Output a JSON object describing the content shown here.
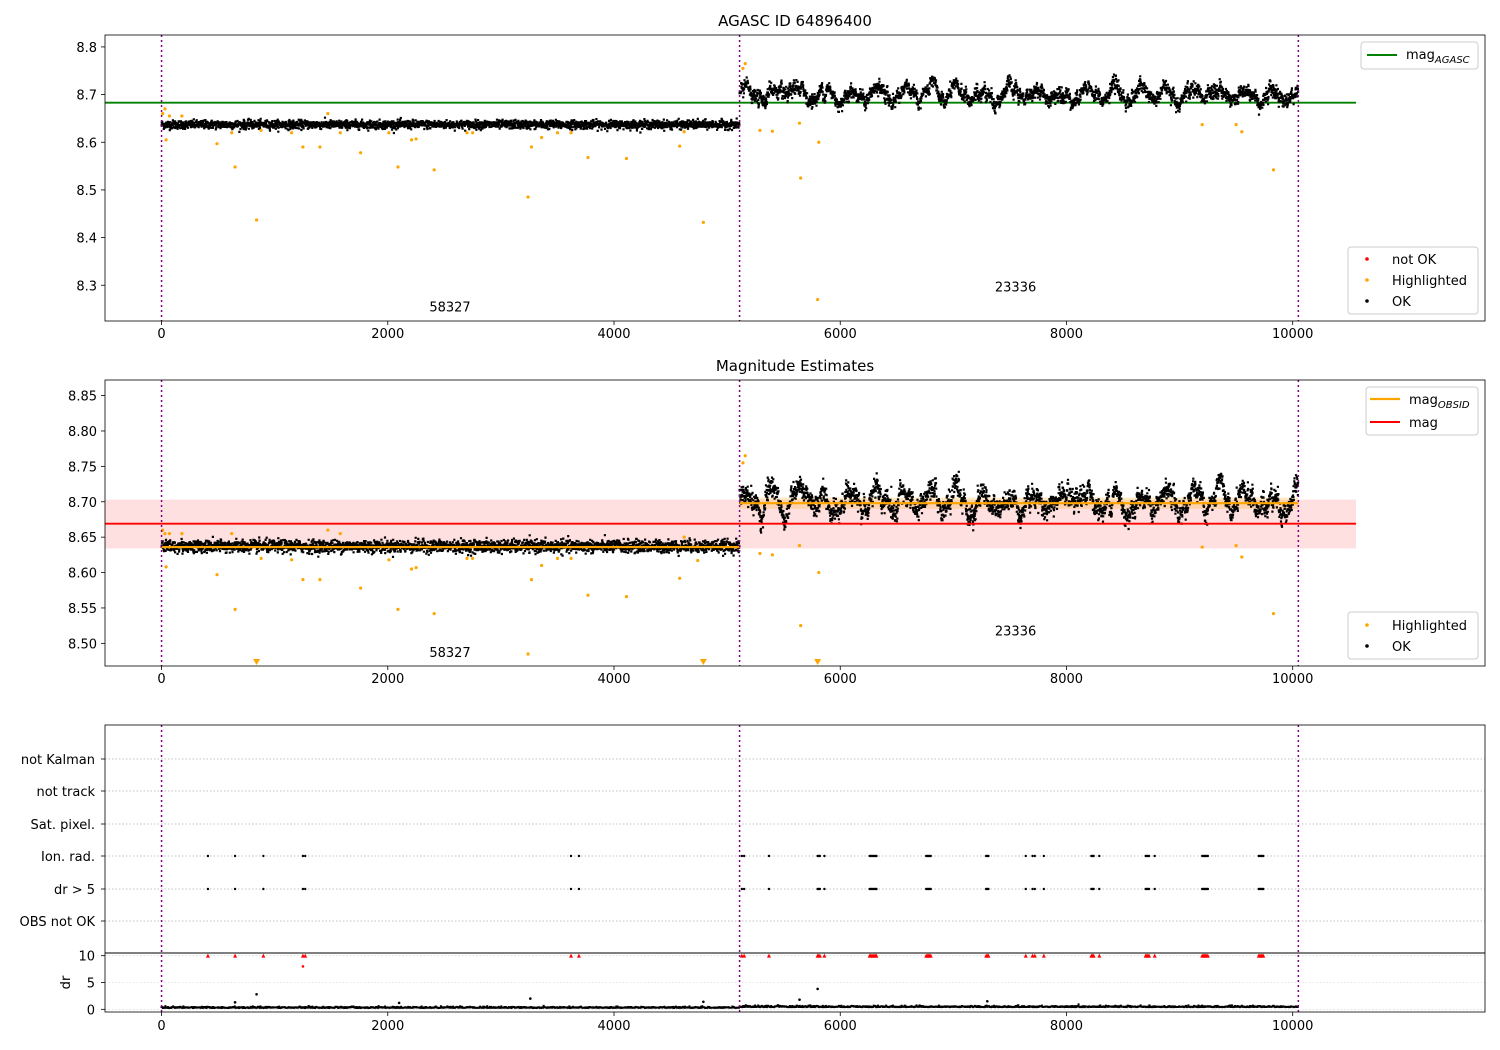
{
  "chart_data": [
    {
      "type": "scatter",
      "title": "AGASC ID 64896400",
      "xlim": [
        -500,
        11700
      ],
      "ylim": [
        8.225,
        8.825
      ],
      "xticks": [
        0,
        2000,
        4000,
        6000,
        8000,
        10000
      ],
      "yticks": [
        8.3,
        8.4,
        8.5,
        8.6,
        8.7,
        8.8
      ],
      "obs_boundaries": [
        0,
        5110,
        10050
      ],
      "observations": [
        {
          "x_start": 0,
          "x_end": 5110,
          "mean": 8.637,
          "scatter": 0.008,
          "label": "58327",
          "label_x": 2550,
          "label_y": 8.245
        },
        {
          "x_start": 5110,
          "x_end": 10050,
          "mean": 8.7,
          "scatter": 0.02,
          "label": "23336",
          "label_x": 7550,
          "label_y": 8.287
        }
      ],
      "reference_lines": [
        {
          "name": "mag_AGASC",
          "y": 8.683,
          "x_start": -500,
          "x_end": 10560,
          "color": "#008000"
        }
      ],
      "highlighted_points": [
        [
          10,
          8.66
        ],
        [
          30,
          8.67
        ],
        [
          40,
          8.605
        ],
        [
          70,
          8.655
        ],
        [
          180,
          8.655
        ],
        [
          490,
          8.597
        ],
        [
          620,
          8.62
        ],
        [
          650,
          8.548
        ],
        [
          840,
          8.437
        ],
        [
          880,
          8.625
        ],
        [
          1150,
          8.62
        ],
        [
          1250,
          8.59
        ],
        [
          1400,
          8.59
        ],
        [
          1470,
          8.66
        ],
        [
          1580,
          8.62
        ],
        [
          1760,
          8.578
        ],
        [
          2010,
          8.62
        ],
        [
          2090,
          8.548
        ],
        [
          2210,
          8.605
        ],
        [
          2250,
          8.607
        ],
        [
          2410,
          8.542
        ],
        [
          2700,
          8.62
        ],
        [
          2750,
          8.62
        ],
        [
          3240,
          8.485
        ],
        [
          3270,
          8.59
        ],
        [
          3360,
          8.61
        ],
        [
          3500,
          8.62
        ],
        [
          3620,
          8.62
        ],
        [
          3770,
          8.568
        ],
        [
          4110,
          8.566
        ],
        [
          4580,
          8.592
        ],
        [
          4620,
          8.622
        ],
        [
          4790,
          8.432
        ],
        [
          5140,
          8.755
        ],
        [
          5160,
          8.765
        ],
        [
          5290,
          8.625
        ],
        [
          5400,
          8.623
        ],
        [
          5640,
          8.64
        ],
        [
          5650,
          8.525
        ],
        [
          5800,
          8.27
        ],
        [
          5810,
          8.6
        ],
        [
          9200,
          8.637
        ],
        [
          9500,
          8.637
        ],
        [
          9550,
          8.622
        ],
        [
          9830,
          8.542
        ]
      ],
      "legend": [
        "not OK",
        "Highlighted",
        "OK"
      ],
      "series_colors": {
        "not OK": "#ff0000",
        "Highlighted": "#ffa500",
        "OK": "#000000"
      }
    },
    {
      "type": "scatter",
      "title": "Magnitude Estimates",
      "xlim": [
        -500,
        11700
      ],
      "ylim": [
        8.468,
        8.872
      ],
      "xticks": [
        0,
        2000,
        4000,
        6000,
        8000,
        10000
      ],
      "yticks": [
        8.5,
        8.55,
        8.6,
        8.65,
        8.7,
        8.75,
        8.8,
        8.85
      ],
      "obs_boundaries": [
        0,
        5110,
        10050
      ],
      "observations": [
        {
          "x_start": 0,
          "x_end": 5110,
          "mean": 8.637,
          "mag_obsid": 8.636,
          "scatter": 0.008,
          "label": "58327",
          "label_x": 2550,
          "label_y": 8.481
        },
        {
          "x_start": 5110,
          "x_end": 10050,
          "mean": 8.7,
          "mag_obsid": 8.698,
          "scatter": 0.02,
          "label": "23336",
          "label_x": 7550,
          "label_y": 8.511
        }
      ],
      "mag_line": {
        "name": "mag",
        "y": 8.669,
        "x_start": -500,
        "x_end": 10560,
        "band": [
          8.634,
          8.703
        ],
        "color": "#ff0000"
      },
      "mag_obsid": [
        {
          "x_start": 0,
          "x_end": 5110,
          "y": 8.636,
          "band": [
            8.632,
            8.641
          ]
        },
        {
          "x_start": 5110,
          "x_end": 10050,
          "y": 8.698,
          "band": [
            8.69,
            8.706
          ]
        }
      ],
      "highlighted_points": [
        [
          10,
          8.66
        ],
        [
          30,
          8.655
        ],
        [
          40,
          8.608
        ],
        [
          70,
          8.655
        ],
        [
          180,
          8.655
        ],
        [
          490,
          8.597
        ],
        [
          620,
          8.655
        ],
        [
          650,
          8.548
        ],
        [
          880,
          8.62
        ],
        [
          1150,
          8.618
        ],
        [
          1250,
          8.59
        ],
        [
          1400,
          8.59
        ],
        [
          1470,
          8.66
        ],
        [
          1580,
          8.655
        ],
        [
          1760,
          8.578
        ],
        [
          2010,
          8.618
        ],
        [
          2090,
          8.548
        ],
        [
          2210,
          8.605
        ],
        [
          2250,
          8.607
        ],
        [
          2410,
          8.542
        ],
        [
          2700,
          8.62
        ],
        [
          2750,
          8.62
        ],
        [
          3240,
          8.485
        ],
        [
          3270,
          8.59
        ],
        [
          3360,
          8.61
        ],
        [
          3500,
          8.62
        ],
        [
          3620,
          8.62
        ],
        [
          3770,
          8.568
        ],
        [
          4110,
          8.566
        ],
        [
          4580,
          8.592
        ],
        [
          4620,
          8.65
        ],
        [
          4740,
          8.617
        ],
        [
          5140,
          8.755
        ],
        [
          5160,
          8.765
        ],
        [
          5290,
          8.627
        ],
        [
          5400,
          8.625
        ],
        [
          5640,
          8.638
        ],
        [
          5650,
          8.525
        ],
        [
          5810,
          8.6
        ],
        [
          9200,
          8.636
        ],
        [
          9500,
          8.638
        ],
        [
          9550,
          8.622
        ],
        [
          9830,
          8.542
        ]
      ],
      "offscale_points": [
        840,
        4790,
        5800
      ],
      "legend": [
        "mag_OBSID",
        "mag",
        "Highlighted",
        "OK"
      ],
      "series_colors": {
        "mag_OBSID": "#ffa500",
        "mag": "#ff0000",
        "Highlighted": "#ffa500",
        "OK": "#000000"
      }
    },
    {
      "type": "scatter",
      "xlim": [
        -500,
        11700
      ],
      "obs_boundaries": [
        0,
        5110,
        10050
      ],
      "flag_categories": [
        "OBS not OK",
        "dr > 5",
        "Ion. rad.",
        "Sat. pixel.",
        "not track",
        "not Kalman"
      ],
      "flag_events": {
        "Ion. rad.": [
          410,
          650,
          900,
          1250,
          1270,
          3620,
          3690,
          5130,
          5150,
          5370,
          5800,
          5810,
          5820,
          5860,
          6260,
          6270,
          6280,
          6290,
          6300,
          6310,
          6320,
          6760,
          6770,
          6780,
          6790,
          6800,
          7290,
          7300,
          7310,
          7640,
          7700,
          7720,
          7800,
          8220,
          8230,
          8240,
          8290,
          8700,
          8710,
          8720,
          8730,
          8780,
          9200,
          9210,
          9220,
          9230,
          9240,
          9250,
          9700,
          9710,
          9720,
          9730,
          9740
        ],
        "dr > 5": [
          410,
          650,
          900,
          1250,
          1270,
          3620,
          3690,
          5130,
          5150,
          5370,
          5800,
          5810,
          5820,
          5860,
          6260,
          6270,
          6280,
          6290,
          6300,
          6310,
          6320,
          6760,
          6770,
          6780,
          6790,
          6800,
          7290,
          7300,
          7310,
          7640,
          7700,
          7720,
          7800,
          8220,
          8230,
          8240,
          8290,
          8700,
          8710,
          8720,
          8730,
          8780,
          9200,
          9210,
          9220,
          9230,
          9240,
          9250,
          9700,
          9710,
          9720,
          9730,
          9740
        ]
      },
      "ylabel": "dr",
      "dr_ylim": [
        -0.5,
        10.5
      ],
      "dr_yticks": [
        0,
        5,
        10
      ],
      "dr_baseline": 0.25,
      "dr_high_points": [
        [
          650,
          1.3
        ],
        [
          840,
          2.8
        ],
        [
          2100,
          1.2
        ],
        [
          3260,
          2.0
        ],
        [
          4790,
          1.4
        ],
        [
          5640,
          1.8
        ],
        [
          5800,
          3.8
        ],
        [
          7300,
          1.5
        ]
      ],
      "dr_not_ok_points": [
        [
          1250,
          8.0
        ]
      ],
      "dr_capped_value": 10
    }
  ]
}
